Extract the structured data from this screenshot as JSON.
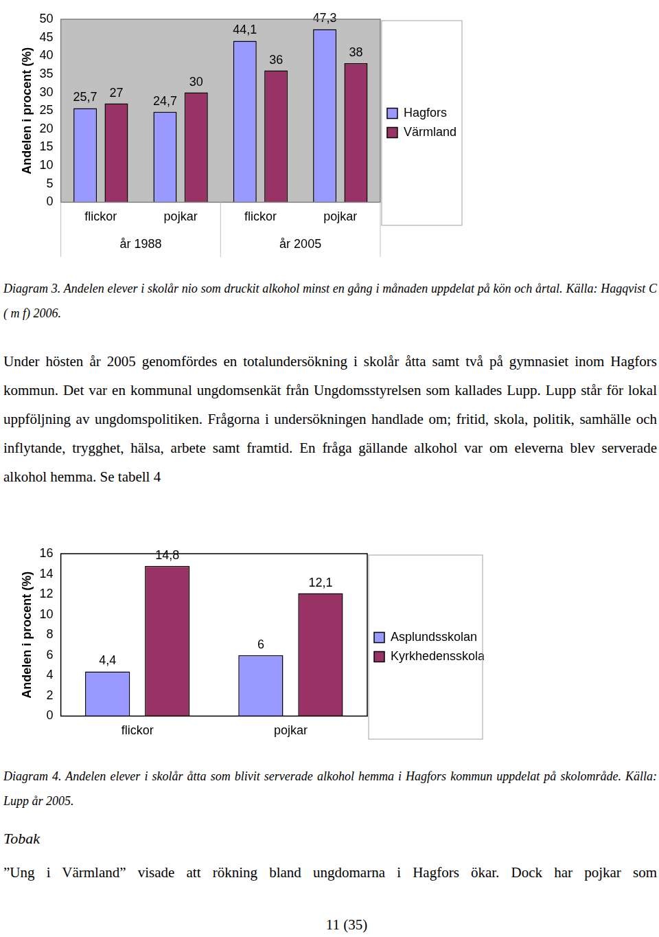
{
  "chart_data": [
    {
      "type": "bar",
      "categories": [
        "flickor",
        "pojkar",
        "flickor",
        "pojkar"
      ],
      "groups": [
        "år 1988",
        "år 2005"
      ],
      "series": [
        {
          "name": "Hagfors",
          "color": "#9999ff",
          "values": [
            25.7,
            24.7,
            44.1,
            47.3
          ],
          "value_labels": [
            "25,7",
            "24,7",
            "44,1",
            "47,3"
          ]
        },
        {
          "name": "Värmland",
          "color": "#993366",
          "values": [
            27,
            30,
            36,
            38
          ],
          "value_labels": [
            "27",
            "30",
            "36",
            "38"
          ]
        }
      ],
      "y_label": "Andelen i procent (%)",
      "ylim": [
        0,
        50
      ],
      "yticks": [
        0,
        5,
        10,
        15,
        20,
        25,
        30,
        35,
        40,
        45,
        50
      ],
      "grid": false,
      "legend": "right",
      "data_labels": true
    },
    {
      "type": "bar",
      "categories": [
        "flickor",
        "pojkar"
      ],
      "series": [
        {
          "name": "Asplundsskolan",
          "color": "#9999ff",
          "values": [
            4.4,
            6
          ],
          "value_labels": [
            "4,4",
            "6"
          ]
        },
        {
          "name": "Kyrkhedensskola",
          "color": "#993366",
          "values": [
            14.8,
            12.1
          ],
          "value_labels": [
            "14,8",
            "12,1"
          ]
        }
      ],
      "y_label": "Andelen i procent (%)",
      "ylim": [
        0,
        16
      ],
      "yticks": [
        0,
        2,
        4,
        6,
        8,
        10,
        12,
        14,
        16
      ],
      "grid": false,
      "legend": "right",
      "data_labels": true
    }
  ],
  "document": {
    "caption_3": "Diagram 3. Andelen elever i skolår nio som druckit alkohol minst en gång i månaden uppdelat på kön och årtal. Källa: Hagqvist C ( m f) 2006.",
    "paragraph": "Under hösten år 2005 genomfördes en totalundersökning i skolår åtta samt två på gymnasiet inom Hagfors kommun. Det var en kommunal ungdomsenkät från Ungdomsstyrelsen som kallades Lupp. Lupp står för lokal uppföljning av ungdomspolitiken. Frågorna i undersökningen handlade om; fritid, skola, politik, samhälle och inflytande, trygghet, hälsa, arbete samt framtid. En fråga gällande alkohol var om eleverna blev serverade alkohol hemma. Se tabell 4",
    "caption_4": "Diagram 4. Andelen elever i skolår åtta som blivit serverade alkohol hemma i Hagfors kommun uppdelat på skolområde. Källa: Lupp år 2005.",
    "heading": "Tobak",
    "last_line": "”Ung i Värmland” visade att rökning bland ungdomarna i Hagfors ökar. Dock har pojkar som",
    "page_number": "11 (35)"
  }
}
